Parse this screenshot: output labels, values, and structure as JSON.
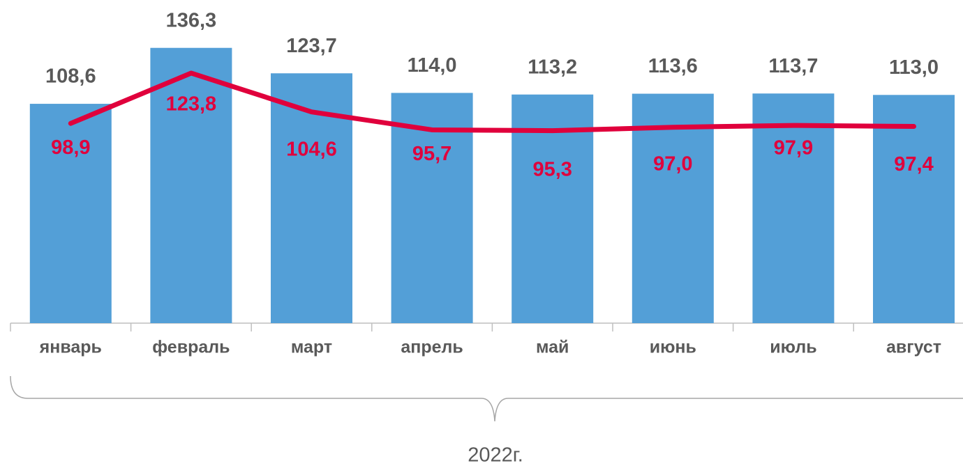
{
  "chart_data": {
    "type": "bar",
    "categories": [
      "январь",
      "февраль",
      "март",
      "апрель",
      "май",
      "июнь",
      "июль",
      "август"
    ],
    "series": [
      {
        "type": "bar",
        "color": "#539fd7",
        "values": [
          108.6,
          136.3,
          123.7,
          114.0,
          113.2,
          113.6,
          113.7,
          113.0
        ],
        "value_labels": [
          "108,6",
          "136,3",
          "123,7",
          "114,0",
          "113,2",
          "113,6",
          "113,7",
          "113,0"
        ]
      },
      {
        "type": "line",
        "color": "#e0003c",
        "values": [
          98.9,
          123.8,
          104.6,
          95.7,
          95.3,
          97.0,
          97.9,
          97.4
        ],
        "value_labels": [
          "98,9",
          "123,8",
          "104,6",
          "95,7",
          "95,3",
          "97,0",
          "97,9",
          "97,4"
        ]
      }
    ],
    "ylim": [
      0,
      160
    ],
    "group_label": "2022г."
  }
}
